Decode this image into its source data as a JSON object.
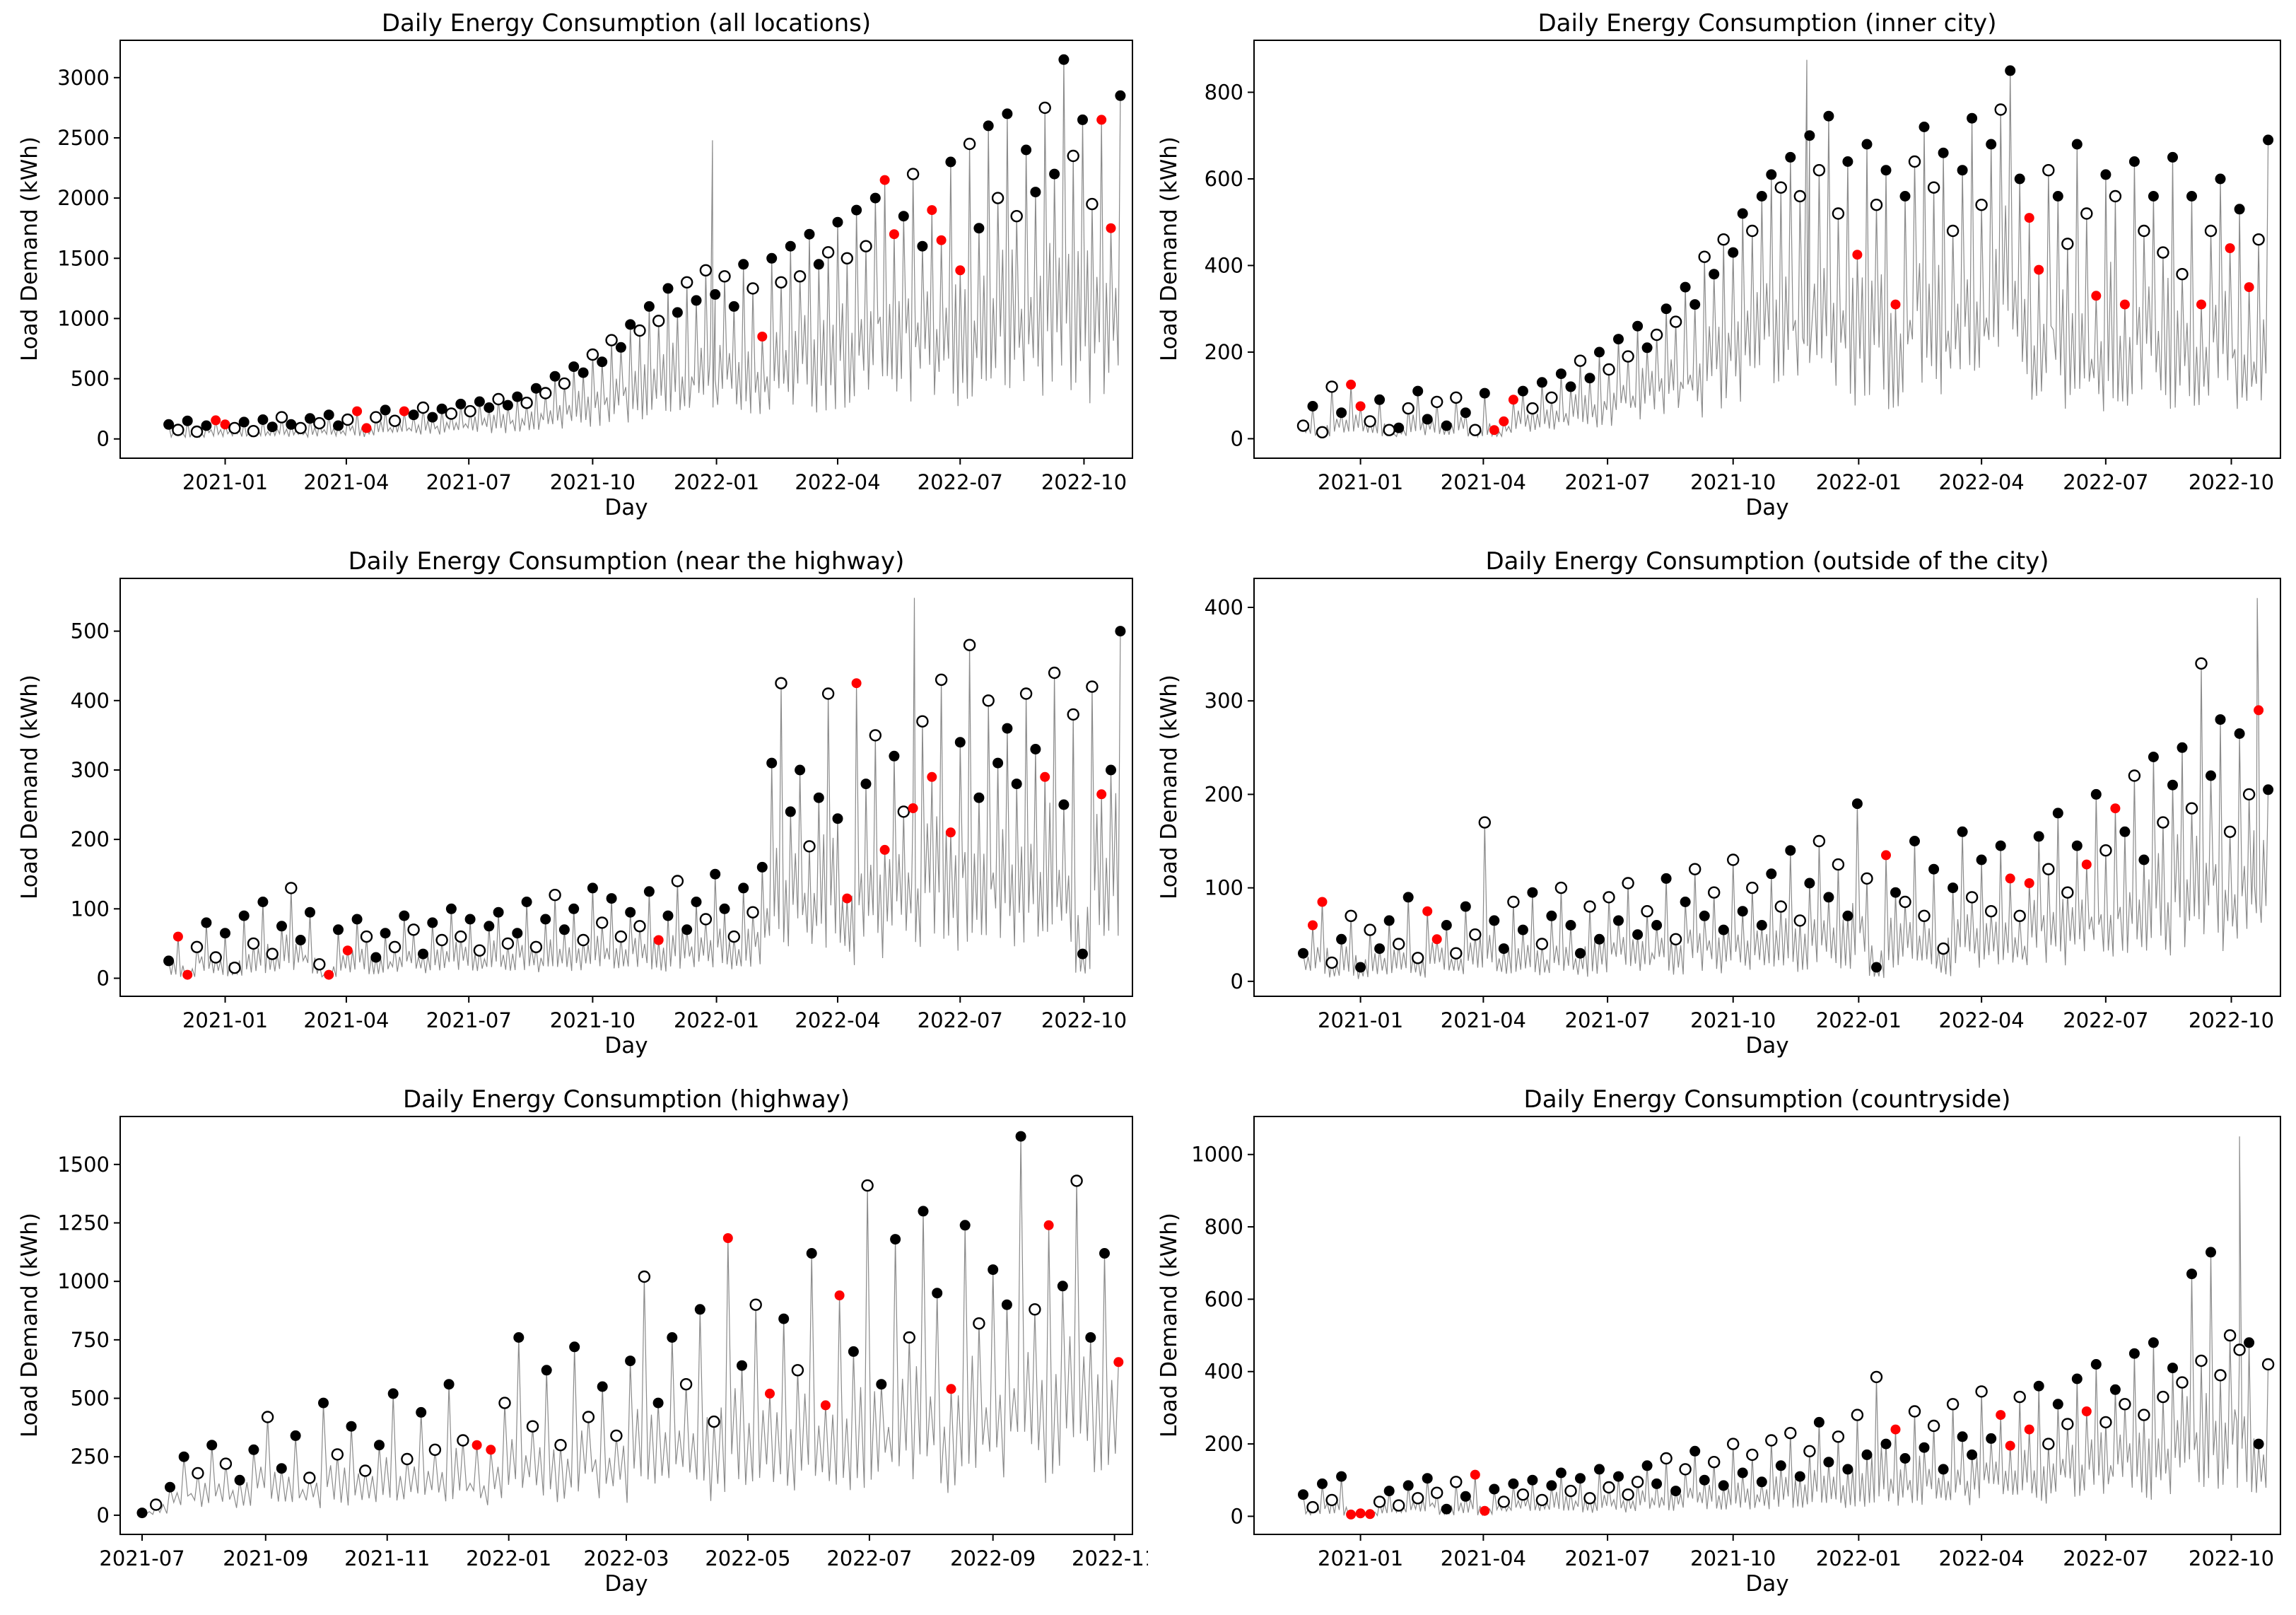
{
  "figure": {
    "background": "#ffffff",
    "rows": 3,
    "cols": 2
  },
  "style": {
    "line_color": "#8a8a8a",
    "axes_color": "#000000",
    "marker_styles": {
      "b": {
        "name": "filled-black",
        "fill": "#000000",
        "stroke": "none"
      },
      "o": {
        "name": "open-circle",
        "fill": "#ffffff",
        "stroke": "#000000"
      },
      "r": {
        "name": "filled-red",
        "fill": "#ff0000",
        "stroke": "none"
      }
    }
  },
  "chart_data": [
    {
      "id": "all-locations",
      "type": "line",
      "title": "Daily Energy Consumption (all locations)",
      "xlabel": "Day",
      "ylabel": "Load Demand (kWh)",
      "xlim_days": [
        0,
        752
      ],
      "ylim": [
        -160,
        3310
      ],
      "y_ticks": [
        0,
        500,
        1000,
        1500,
        2000,
        2500,
        3000
      ],
      "x_ticks": {
        "days": [
          78,
          168,
          259,
          351,
          443,
          533,
          624,
          716
        ],
        "labels": [
          "2021-01",
          "2021-04",
          "2021-07",
          "2021-10",
          "2022-01",
          "2022-04",
          "2022-07",
          "2022-10"
        ]
      },
      "markers": {
        "start_day": 36,
        "step_days": 7,
        "values": [
          120,
          75,
          150,
          60,
          110,
          155,
          120,
          90,
          140,
          65,
          160,
          100,
          180,
          120,
          90,
          170,
          130,
          200,
          110,
          160,
          230,
          90,
          180,
          240,
          150,
          230,
          200,
          260,
          180,
          250,
          210,
          290,
          230,
          310,
          260,
          330,
          280,
          350,
          300,
          420,
          380,
          520,
          460,
          600,
          550,
          700,
          640,
          820,
          760,
          950,
          900,
          1100,
          980,
          1250,
          1050,
          1300,
          1150,
          1400,
          1200,
          1350,
          1100,
          1450,
          1250,
          850,
          1500,
          1300,
          1600,
          1350,
          1700,
          1450,
          1550,
          1800,
          1500,
          1900,
          1600,
          2000,
          2150,
          1700,
          1850,
          2200,
          1600,
          1900,
          1650,
          2300,
          1400,
          2450,
          1750,
          2600,
          2000,
          2700,
          1850,
          2400,
          2050,
          2750,
          2200,
          3150,
          2350,
          2650,
          1950,
          2650,
          1750,
          2850
        ],
        "kinds": "bobobrrobobbobobobborroborbobbobobbobbobobobbobobbobobbobobobborbobobbobobobrrbobrrbrobbobobbobboborrb"
      },
      "extra_spikes": [
        [
          440,
          2480
        ]
      ]
    },
    {
      "id": "inner-city",
      "type": "line",
      "title": "Daily Energy Consumption (inner city)",
      "xlabel": "Day",
      "ylabel": "Load Demand (kWh)",
      "xlim_days": [
        0,
        752
      ],
      "ylim": [
        -45,
        920
      ],
      "y_ticks": [
        0,
        200,
        400,
        600,
        800
      ],
      "x_ticks": {
        "days": [
          78,
          168,
          259,
          351,
          443,
          533,
          624,
          716
        ],
        "labels": [
          "2021-01",
          "2021-04",
          "2021-07",
          "2021-10",
          "2022-01",
          "2022-04",
          "2022-07",
          "2022-10"
        ]
      },
      "markers": {
        "start_day": 36,
        "step_days": 7,
        "values": [
          30,
          75,
          15,
          120,
          60,
          125,
          75,
          40,
          90,
          20,
          25,
          70,
          110,
          45,
          85,
          30,
          95,
          60,
          20,
          105,
          20,
          40,
          90,
          110,
          70,
          130,
          95,
          150,
          120,
          180,
          140,
          200,
          160,
          230,
          190,
          260,
          210,
          240,
          300,
          270,
          350,
          310,
          420,
          380,
          460,
          430,
          520,
          480,
          560,
          610,
          580,
          650,
          560,
          700,
          620,
          745,
          520,
          640,
          425,
          680,
          540,
          620,
          310,
          560,
          640,
          720,
          580,
          660,
          480,
          620,
          740,
          540,
          680,
          760,
          850,
          600,
          510,
          390,
          620,
          560,
          450,
          680,
          520,
          330,
          610,
          560,
          310,
          640,
          480,
          560,
          430,
          650,
          380,
          560,
          310,
          480,
          600,
          440,
          530,
          350,
          460,
          690
        ],
        "kinds": "oboobrrobobobbobobobrrrbobobbobbobobbobobbobobbobbobobobobrbobrbobobobbobobbrroboborborbobobobrobrbrob"
      },
      "extra_spikes": [
        [
          405,
          875
        ]
      ]
    },
    {
      "id": "near-the-highway",
      "type": "line",
      "title": "Daily Energy Consumption (near the highway)",
      "xlabel": "Day",
      "ylabel": "Load Demand (kWh)",
      "xlim_days": [
        0,
        752
      ],
      "ylim": [
        -26,
        576
      ],
      "y_ticks": [
        0,
        100,
        200,
        300,
        400,
        500
      ],
      "x_ticks": {
        "days": [
          78,
          168,
          259,
          351,
          443,
          533,
          624,
          716
        ],
        "labels": [
          "2021-01",
          "2021-04",
          "2021-07",
          "2021-10",
          "2022-01",
          "2022-04",
          "2022-07",
          "2022-10"
        ]
      },
      "markers": {
        "start_day": 36,
        "step_days": 7,
        "values": [
          25,
          60,
          5,
          45,
          80,
          30,
          65,
          15,
          90,
          50,
          110,
          35,
          75,
          130,
          55,
          95,
          20,
          5,
          70,
          40,
          85,
          60,
          30,
          65,
          45,
          90,
          70,
          35,
          80,
          55,
          100,
          60,
          85,
          40,
          75,
          95,
          50,
          65,
          110,
          45,
          85,
          120,
          70,
          100,
          55,
          130,
          80,
          115,
          60,
          95,
          75,
          125,
          55,
          90,
          140,
          70,
          110,
          85,
          150,
          100,
          60,
          130,
          95,
          160,
          310,
          425,
          240,
          300,
          190,
          260,
          410,
          230,
          115,
          425,
          280,
          350,
          185,
          320,
          240,
          245,
          370,
          290,
          430,
          210,
          340,
          480,
          260,
          400,
          310,
          360,
          280,
          410,
          330,
          290,
          440,
          250,
          380,
          35,
          420,
          265,
          300,
          500
        ],
        "kinds": "brrobobobobobobborbrbobbobobbobobobbobbobobbobobobobrbobbobbobobbobbobobrrborborororbobobbbobroboborbb"
      },
      "extra_spikes": [
        [
          590,
          548
        ]
      ]
    },
    {
      "id": "outside-of-the-city",
      "type": "line",
      "title": "Daily Energy Consumption (outside of the city)",
      "xlabel": "Day",
      "ylabel": "Load Demand (kWh)",
      "xlim_days": [
        0,
        752
      ],
      "ylim": [
        -16,
        431
      ],
      "y_ticks": [
        0,
        100,
        200,
        300,
        400
      ],
      "x_ticks": {
        "days": [
          78,
          168,
          259,
          351,
          443,
          533,
          624,
          716
        ],
        "labels": [
          "2021-01",
          "2021-04",
          "2021-07",
          "2021-10",
          "2022-01",
          "2022-04",
          "2022-07",
          "2022-10"
        ]
      },
      "markers": {
        "start_day": 36,
        "step_days": 7,
        "values": [
          30,
          60,
          85,
          20,
          45,
          70,
          15,
          55,
          35,
          65,
          40,
          90,
          25,
          75,
          45,
          60,
          30,
          80,
          50,
          170,
          65,
          35,
          85,
          55,
          95,
          40,
          70,
          100,
          60,
          30,
          80,
          45,
          90,
          65,
          105,
          50,
          75,
          60,
          110,
          45,
          85,
          120,
          70,
          95,
          55,
          130,
          75,
          100,
          60,
          115,
          80,
          140,
          65,
          105,
          150,
          90,
          125,
          70,
          190,
          110,
          15,
          135,
          95,
          85,
          150,
          70,
          120,
          35,
          100,
          160,
          90,
          130,
          75,
          145,
          110,
          70,
          105,
          155,
          120,
          180,
          95,
          145,
          125,
          200,
          140,
          185,
          160,
          220,
          130,
          240,
          170,
          210,
          250,
          185,
          340,
          220,
          280,
          160,
          265,
          200,
          290,
          205
        ],
        "kinds": "brrobobobboborrbobookbobbobobbobobobobbobobobobobbobobobobbobrbobobobbobobrorbobobrborbobbobboobboborb"
      },
      "extra_spikes": [
        [
          735,
          410
        ]
      ]
    },
    {
      "id": "highway",
      "type": "line",
      "title": "Daily Energy Consumption (highway)",
      "xlabel": "Day",
      "ylabel": "Load Demand (kWh)",
      "xlim_days": [
        0,
        508
      ],
      "ylim": [
        -82,
        1705
      ],
      "y_ticks": [
        0,
        250,
        500,
        750,
        1000,
        1250,
        1500
      ],
      "x_ticks": {
        "days": [
          11,
          73,
          134,
          195,
          254,
          315,
          376,
          438,
          499
        ],
        "labels": [
          "2021-07",
          "2021-09",
          "2021-11",
          "2022-01",
          "2022-03",
          "2022-05",
          "2022-07",
          "2022-09",
          "2022-11"
        ]
      },
      "markers": {
        "start_day": 11,
        "step_days": 7,
        "values": [
          10,
          45,
          120,
          250,
          180,
          300,
          220,
          150,
          280,
          420,
          200,
          340,
          160,
          480,
          260,
          380,
          190,
          300,
          520,
          240,
          440,
          280,
          560,
          320,
          300,
          280,
          480,
          760,
          380,
          620,
          300,
          720,
          420,
          550,
          340,
          660,
          1020,
          480,
          760,
          560,
          880,
          400,
          1185,
          640,
          900,
          520,
          840,
          620,
          1120,
          470,
          940,
          700,
          1410,
          560,
          1180,
          760,
          1300,
          950,
          540,
          1240,
          820,
          1050,
          900,
          1620,
          880,
          1240,
          980,
          1430,
          760,
          1120,
          655
        ],
        "kinds": "bobbobobbobbobobobboboborrobobobobobobboborborbobrrbobbobbrbobbborbobbr"
      },
      "extra_spikes": []
    },
    {
      "id": "countryside",
      "type": "line",
      "title": "Daily Energy Consumption (countryside)",
      "xlabel": "Day",
      "ylabel": "Load Demand (kWh)",
      "xlim_days": [
        0,
        752
      ],
      "ylim": [
        -50,
        1105
      ],
      "y_ticks": [
        0,
        200,
        400,
        600,
        800,
        1000
      ],
      "x_ticks": {
        "days": [
          78,
          168,
          259,
          351,
          443,
          533,
          624,
          716
        ],
        "labels": [
          "2021-01",
          "2021-04",
          "2021-07",
          "2021-10",
          "2022-01",
          "2022-04",
          "2022-07",
          "2022-10"
        ]
      },
      "markers": {
        "start_day": 36,
        "step_days": 7,
        "values": [
          60,
          25,
          90,
          45,
          110,
          5,
          8,
          6,
          40,
          70,
          30,
          85,
          50,
          105,
          65,
          20,
          95,
          55,
          115,
          15,
          75,
          40,
          90,
          60,
          100,
          45,
          85,
          120,
          70,
          105,
          50,
          130,
          80,
          110,
          60,
          95,
          140,
          90,
          160,
          70,
          130,
          180,
          100,
          150,
          85,
          200,
          120,
          170,
          95,
          210,
          140,
          230,
          110,
          180,
          260,
          150,
          220,
          130,
          280,
          170,
          385,
          200,
          240,
          160,
          290,
          190,
          250,
          130,
          310,
          220,
          170,
          345,
          215,
          280,
          195,
          330,
          240,
          360,
          200,
          310,
          255,
          380,
          290,
          420,
          260,
          350,
          310,
          450,
          280,
          480,
          330,
          410,
          370,
          670,
          430,
          730,
          390,
          500,
          460,
          480,
          200,
          420
        ],
        "kinds": "bobobrrrobobobobobrrbobobobboboboboobbobobbobobobobobobbobobo rbobobobbobrrorbobobrbobobobobobobooobbor"
      },
      "extra_spikes": [
        [
          722,
          1050
        ]
      ]
    }
  ]
}
